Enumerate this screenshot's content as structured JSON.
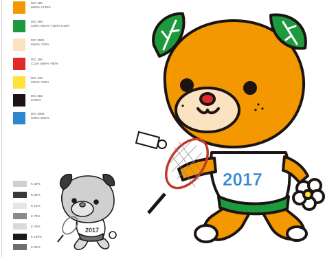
{
  "color_swatches": [
    {
      "color": "#f39800",
      "line1": "DIC 185",
      "line2": "M45% Y100%"
    },
    {
      "color": "#1c9a3d",
      "line1": "DIC 288",
      "line2": "C85% M10% Y100% K10%"
    },
    {
      "color": "#fbe3c1",
      "line1": "DIC 2080",
      "line2": "M10% Y30%"
    },
    {
      "color": "#e12a2a",
      "line1": "DIC 156",
      "line2": "C11% M90% Y90%"
    },
    {
      "color": "#ffe13a",
      "line1": "DIC 130",
      "line2": "M10% Y90%"
    },
    {
      "color": "#1b1412",
      "line1": "DIC 582",
      "line2": "K100%"
    },
    {
      "color": "#2f86d0",
      "line1": "DIC 2085",
      "line2": "C80% M40%"
    }
  ],
  "gray_swatches": [
    {
      "color": "#d0d0d0",
      "label": "K 30%"
    },
    {
      "color": "#3a3a3a",
      "label": "K 85%"
    },
    {
      "color": "#e6e6e6",
      "label": "K 10%"
    },
    {
      "color": "#8a8a8a",
      "label": "K 75%"
    },
    {
      "color": "#dadada",
      "label": "K 20%"
    },
    {
      "color": "#1a1a1a",
      "label": "K 100%"
    },
    {
      "color": "#6e6e6e",
      "label": "K 80%"
    }
  ],
  "mascot": {
    "year": "2017",
    "body_color": "#f39800",
    "leaf_color": "#1c9a3d",
    "muzzle_color": "#fbe3c1",
    "nose_color": "#e12a2a",
    "year_color": "#2f86d0"
  },
  "mascot_gray": {
    "year": "2017"
  }
}
